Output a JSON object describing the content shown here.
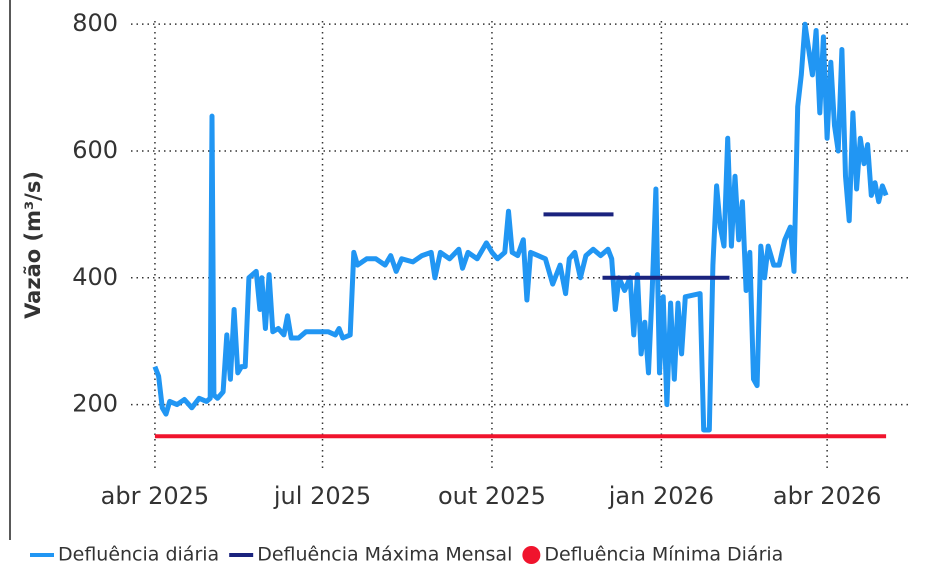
{
  "chart_data": {
    "type": "line",
    "y_label": "Vazão (m³/s)",
    "xlim": [
      -13,
      410
    ],
    "ylim": [
      100,
      805
    ],
    "xticks": [
      {
        "value": 0,
        "label": "abr 2025"
      },
      {
        "value": 91,
        "label": "jul 2025"
      },
      {
        "value": 183,
        "label": "out 2025"
      },
      {
        "value": 275,
        "label": "jan 2026"
      },
      {
        "value": 365,
        "label": "abr 2026"
      }
    ],
    "yticks": [
      200,
      400,
      600,
      800
    ],
    "grid": true,
    "series": [
      {
        "name": "Defluência diária",
        "color": "#2196f3",
        "marker": "line",
        "x": [
          0,
          2,
          4,
          6,
          8,
          12,
          16,
          20,
          24,
          28,
          30,
          31,
          32,
          34,
          37,
          39,
          41,
          43,
          45,
          47,
          49,
          51,
          53,
          55,
          57,
          58,
          60,
          62,
          64,
          67,
          70,
          72,
          74,
          78,
          82,
          88,
          94,
          98,
          100,
          102,
          106,
          108,
          110,
          115,
          120,
          125,
          128,
          131,
          134,
          140,
          145,
          150,
          152,
          155,
          160,
          165,
          167,
          170,
          175,
          180,
          183,
          186,
          190,
          192,
          194,
          197,
          200,
          202,
          204,
          208,
          212,
          216,
          220,
          223,
          225,
          228,
          231,
          234,
          238,
          242,
          246,
          248,
          250,
          252,
          255,
          258,
          260,
          262,
          264,
          266,
          268,
          270,
          272,
          274,
          276,
          278,
          280,
          282,
          284,
          286,
          288,
          296,
          298,
          301,
          303,
          305,
          307,
          309,
          311,
          313,
          315,
          317,
          319,
          321,
          323,
          325,
          327,
          329,
          331,
          333,
          336,
          339,
          342,
          345,
          347,
          349,
          351,
          353,
          355,
          357,
          359,
          361,
          363,
          365,
          367,
          369,
          371,
          373,
          375,
          377,
          379,
          381,
          383,
          385,
          387,
          389,
          391,
          393,
          395,
          397
        ],
        "values": [
          260,
          245,
          195,
          185,
          205,
          200,
          208,
          195,
          210,
          205,
          210,
          655,
          215,
          210,
          220,
          310,
          240,
          350,
          250,
          260,
          260,
          400,
          405,
          410,
          350,
          400,
          320,
          405,
          315,
          320,
          310,
          340,
          305,
          305,
          315,
          315,
          315,
          310,
          320,
          305,
          310,
          440,
          420,
          430,
          430,
          420,
          435,
          410,
          430,
          425,
          435,
          440,
          400,
          440,
          430,
          445,
          415,
          440,
          430,
          455,
          440,
          430,
          440,
          505,
          440,
          435,
          460,
          365,
          440,
          435,
          430,
          390,
          420,
          375,
          430,
          440,
          400,
          435,
          445,
          435,
          445,
          430,
          350,
          400,
          380,
          400,
          310,
          405,
          280,
          330,
          250,
          380,
          540,
          250,
          370,
          200,
          360,
          240,
          360,
          280,
          370,
          375,
          160,
          160,
          420,
          545,
          480,
          450,
          620,
          450,
          560,
          460,
          520,
          380,
          440,
          240,
          230,
          450,
          400,
          450,
          420,
          420,
          460,
          480,
          410,
          670,
          720,
          800,
          760,
          720,
          790,
          660,
          780,
          620,
          740,
          640,
          600,
          760,
          560,
          490,
          660,
          540,
          620,
          580,
          610,
          530,
          550,
          520,
          545,
          530
        ]
      },
      {
        "name": "Defluência Máxima Mensal",
        "color": "#1a237e",
        "marker": "line",
        "x": [
          211,
          249,
          249,
          243,
          312
        ],
        "values": [
          500,
          500,
          null,
          400,
          400
        ]
      },
      {
        "name": "Defluência Mínima Diária",
        "color": "#f0142d",
        "marker": "dot",
        "x": [
          0,
          397
        ],
        "values": [
          150,
          150
        ]
      }
    ]
  }
}
